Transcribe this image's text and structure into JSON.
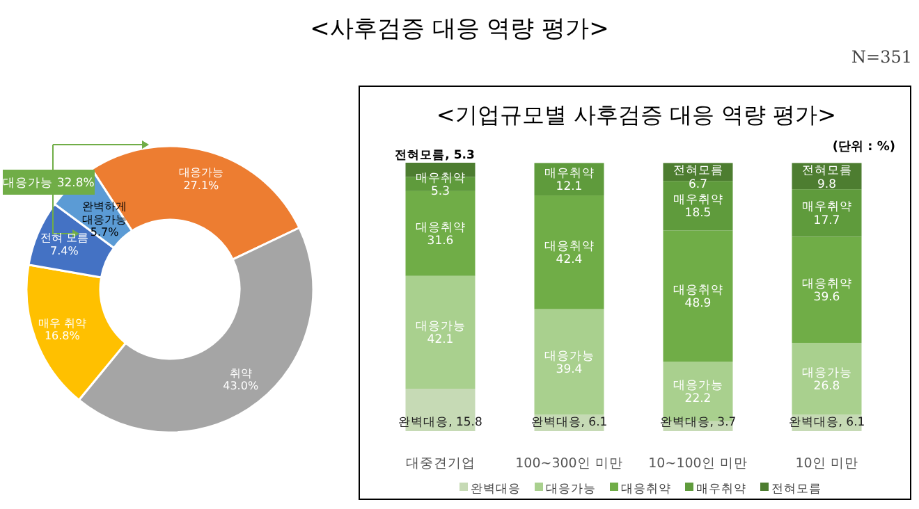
{
  "chart_data": [
    {
      "type": "other",
      "title": "<사후검증 대응 역량 평가>",
      "annotations": [
        "N=351"
      ]
    },
    {
      "type": "donut",
      "categories": [
        "대응가능",
        "취약",
        "매우 취약",
        "전혀 모름",
        "완벽하게 대응가능"
      ],
      "values": [
        27.1,
        43.0,
        16.8,
        7.4,
        5.7
      ],
      "colors": [
        "#ed7d31",
        "#a5a5a5",
        "#ffc000",
        "#4472c4",
        "#5b9bd5"
      ],
      "value_labels": [
        "27.1%",
        "43.0%",
        "16.8%",
        "7.4%",
        "5.7%"
      ],
      "annotations": [
        "대응가능 32.8%"
      ]
    },
    {
      "type": "bar",
      "stacked": true,
      "title": "<기업규모별 사후검증 대응 역량 평가>",
      "categories": [
        "대중견기업",
        "100~300인 미만",
        "10~100인 미만",
        "10인 미만"
      ],
      "series": [
        {
          "name": "완벽대응",
          "color": "#c6dab5",
          "values": [
            15.8,
            6.1,
            3.7,
            6.1
          ],
          "value_labels": [
            "완벽대응, 15.8",
            "완벽대응, 6.1",
            "완벽대응, 3.7",
            "완벽대응, 6.1"
          ]
        },
        {
          "name": "대응가능",
          "color": "#a9d08e",
          "values": [
            42.1,
            39.4,
            22.2,
            26.8
          ],
          "value_labels": [
            "대응가능\n42.1",
            "대응가능\n39.4",
            "대응가능\n22.2",
            "대응가능\n26.8"
          ]
        },
        {
          "name": "대응취약",
          "color": "#70ad47",
          "values": [
            31.6,
            42.4,
            48.9,
            39.6
          ],
          "value_labels": [
            "대응취약\n31.6",
            "대응취약\n42.4",
            "대응취약\n48.9",
            "대응취약\n39.6"
          ]
        },
        {
          "name": "매우취약",
          "color": "#5f9b3c",
          "values": [
            5.3,
            12.1,
            18.5,
            17.7
          ],
          "value_labels": [
            "매우취약\n5.3",
            "매우취약\n12.1",
            "매우취약\n18.5",
            "매우취약\n17.7"
          ]
        },
        {
          "name": "전혀모름",
          "color": "#4d7d30",
          "values": [
            5.3,
            null,
            6.7,
            9.8
          ],
          "value_labels": [
            "전혀모름, 5.3",
            null,
            "전혀모름\n6.7",
            "전혀모름\n9.8"
          ]
        }
      ],
      "legend": "bottom",
      "annotations": [
        "(단위 : %)"
      ]
    }
  ]
}
